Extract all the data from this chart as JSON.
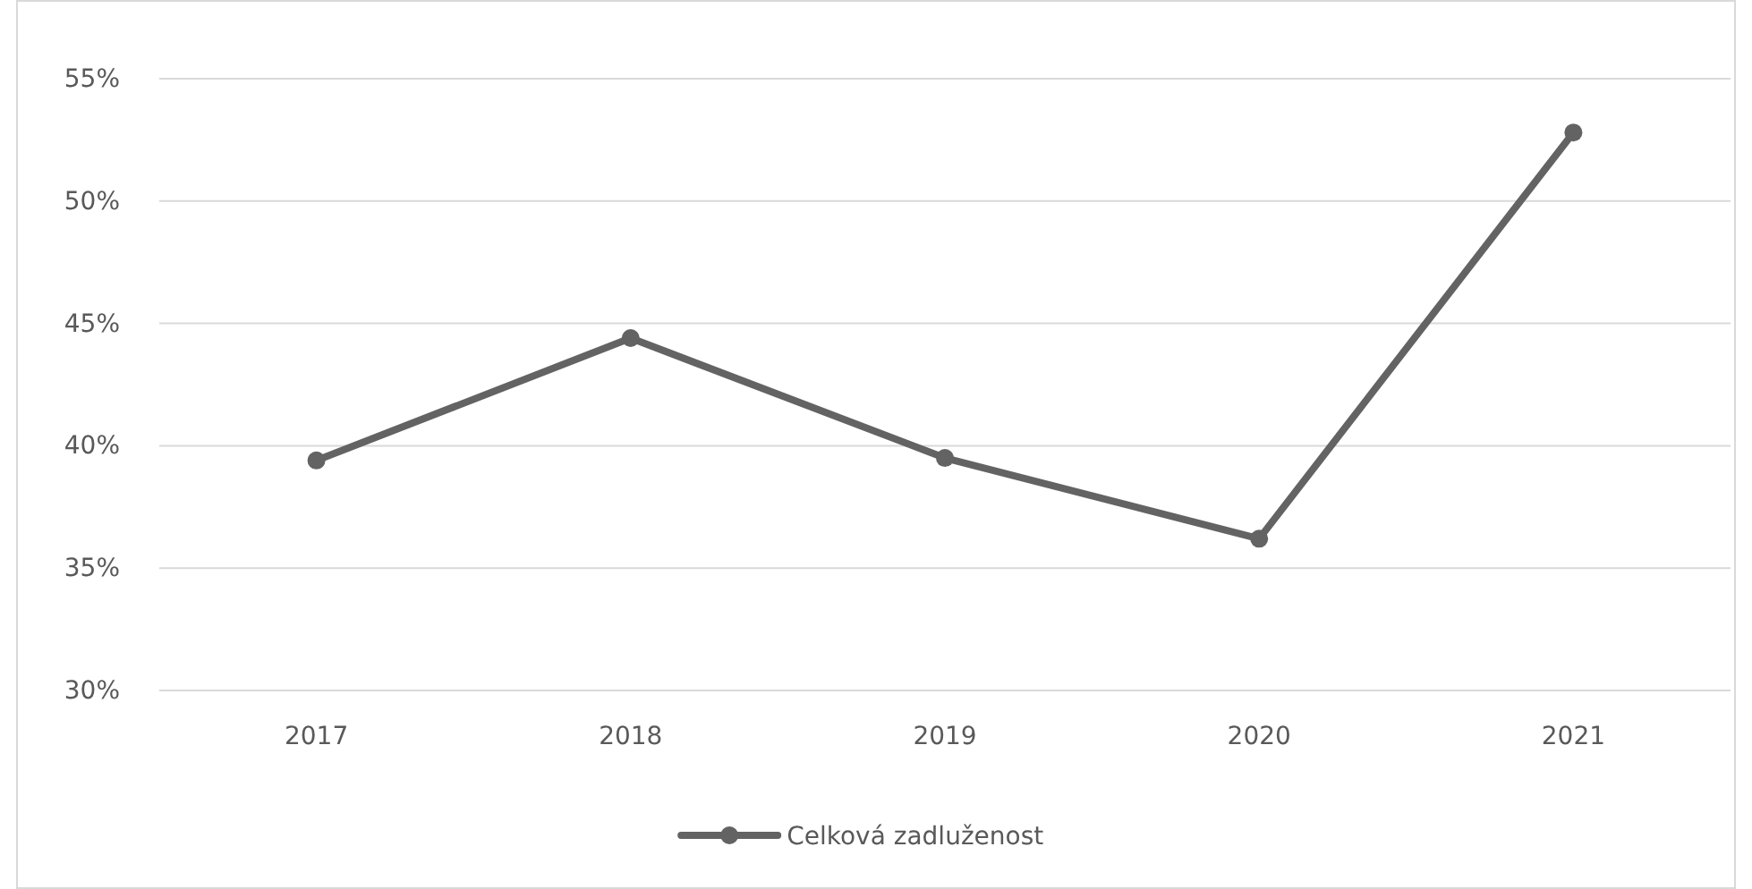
{
  "chart_data": {
    "type": "line",
    "categories": [
      "2017",
      "2018",
      "2019",
      "2020",
      "2021"
    ],
    "series": [
      {
        "name": "Celková zadluženost",
        "color": "#636363",
        "values": [
          39.4,
          44.4,
          39.5,
          36.2,
          52.8
        ]
      }
    ],
    "ylim": [
      30,
      55
    ],
    "yticks": [
      {
        "value": 30,
        "label": "30%"
      },
      {
        "value": 35,
        "label": "35%"
      },
      {
        "value": 40,
        "label": "40%"
      },
      {
        "value": 45,
        "label": "45%"
      },
      {
        "value": 50,
        "label": "50%"
      },
      {
        "value": 55,
        "label": "55%"
      }
    ],
    "grid": "y",
    "legend": "bottom",
    "marker": "circle",
    "line_style": "solid"
  }
}
